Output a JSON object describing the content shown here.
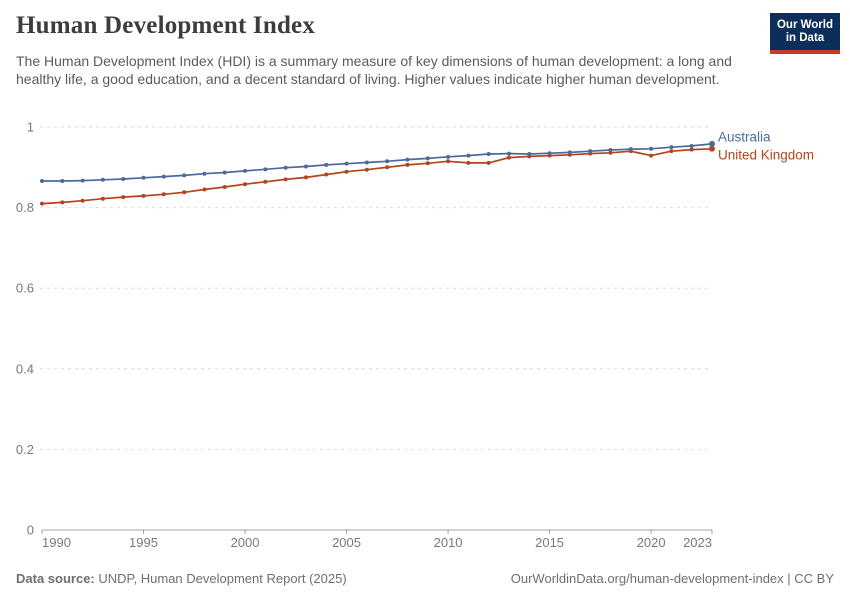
{
  "header": {
    "title": "Human Development Index",
    "subtitle": "The Human Development Index (HDI) is a summary measure of key dimensions of human development: a long and healthy life, a good education, and a decent standard of living. Higher values indicate higher human development.",
    "logo": {
      "line1": "Our World",
      "line2": "in Data"
    }
  },
  "chart_data": {
    "type": "line",
    "title": "Human Development Index",
    "xlabel": "",
    "ylabel": "",
    "ylim": [
      0,
      1
    ],
    "yticks": [
      0,
      0.2,
      0.4,
      0.6,
      0.8,
      1
    ],
    "ytick_labels": [
      "0",
      "0.2",
      "0.4",
      "0.6",
      "0.8",
      "1"
    ],
    "xticks": [
      1990,
      1995,
      2000,
      2005,
      2010,
      2015,
      2020,
      2023
    ],
    "grid": "horizontal-dashed",
    "legend_position": "right-of-line-ends",
    "x": [
      1990,
      1991,
      1992,
      1993,
      1994,
      1995,
      1996,
      1997,
      1998,
      1999,
      2000,
      2001,
      2002,
      2003,
      2004,
      2005,
      2006,
      2007,
      2008,
      2009,
      2010,
      2011,
      2012,
      2013,
      2014,
      2015,
      2016,
      2017,
      2018,
      2019,
      2020,
      2021,
      2022,
      2023
    ],
    "series": [
      {
        "name": "Australia",
        "color": "#4C6A9C",
        "values": [
          0.866,
          0.866,
          0.867,
          0.869,
          0.871,
          0.874,
          0.877,
          0.88,
          0.884,
          0.887,
          0.891,
          0.895,
          0.899,
          0.902,
          0.906,
          0.909,
          0.912,
          0.915,
          0.919,
          0.922,
          0.926,
          0.929,
          0.933,
          0.934,
          0.933,
          0.935,
          0.937,
          0.94,
          0.943,
          0.945,
          0.946,
          0.95,
          0.953,
          0.958
        ]
      },
      {
        "name": "United Kingdom",
        "color": "#B5431C",
        "values": [
          0.81,
          0.813,
          0.817,
          0.822,
          0.826,
          0.829,
          0.833,
          0.838,
          0.845,
          0.851,
          0.858,
          0.864,
          0.87,
          0.875,
          0.882,
          0.889,
          0.894,
          0.9,
          0.906,
          0.91,
          0.915,
          0.911,
          0.911,
          0.924,
          0.927,
          0.929,
          0.931,
          0.934,
          0.936,
          0.94,
          0.929,
          0.94,
          0.944,
          0.946
        ]
      }
    ]
  },
  "colors": {
    "grid": "#dcdcdc",
    "axis": "#a3a3a3",
    "tick_text": "#7a7a7a",
    "logo_bg": "#0b2e5b",
    "logo_accent": "#c93a2a"
  },
  "footer": {
    "source_label": "Data source:",
    "source_text": " UNDP, Human Development Report (2025)",
    "attribution": "OurWorldinData.org/human-development-index | CC BY"
  }
}
